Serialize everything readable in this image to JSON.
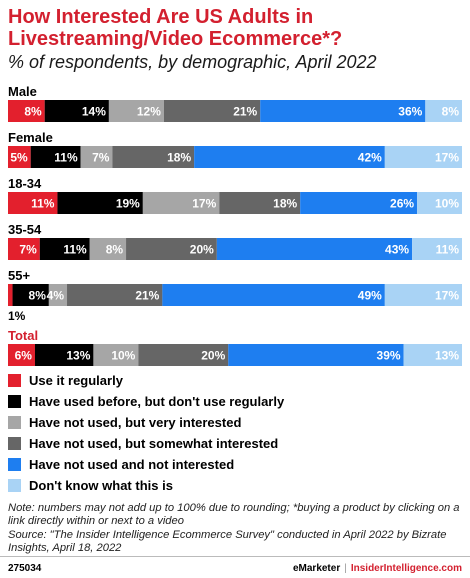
{
  "title": "How Interested Are US Adults in Livestreaming/Video Ecommerce*?",
  "subtitle": "% of respondents, by demographic, April 2022",
  "chart_data": {
    "type": "bar",
    "orientation": "horizontal",
    "stacked": true,
    "categories": [
      "Male",
      "Female",
      "18-34",
      "35-54",
      "55+",
      "Total"
    ],
    "series": [
      {
        "name": "Use it regularly",
        "color": "#e3202d",
        "values": [
          8,
          5,
          11,
          7,
          1,
          6
        ]
      },
      {
        "name": "Have used before, but don't use regularly",
        "color": "#000000",
        "values": [
          14,
          11,
          19,
          11,
          8,
          13
        ]
      },
      {
        "name": "Have not used, but very interested",
        "color": "#a6a6a6",
        "values": [
          12,
          7,
          17,
          8,
          4,
          10
        ]
      },
      {
        "name": "Have not used, but somewhat interested",
        "color": "#666666",
        "values": [
          21,
          18,
          18,
          20,
          21,
          20
        ]
      },
      {
        "name": "Have not used and not interested",
        "color": "#1e7ef0",
        "values": [
          36,
          42,
          26,
          43,
          49,
          39
        ]
      },
      {
        "name": "Don't know what this is",
        "color": "#a9d3f5",
        "values": [
          8,
          17,
          10,
          11,
          17,
          13
        ]
      }
    ],
    "legend_position": "bottom-left",
    "grid": false
  },
  "notes": [
    "Note: numbers may not add up to 100% due to rounding; *buying a product by clicking on a link directly within or next to a video",
    "Source: \"The Insider Intelligence Ecommerce Survey\" conducted in April 2022 by Bizrate Insights, April 18, 2022"
  ],
  "footer": {
    "chart_id": "275034",
    "brand": "eMarketer",
    "separator": "|",
    "site": "InsiderIntelligence.com"
  }
}
